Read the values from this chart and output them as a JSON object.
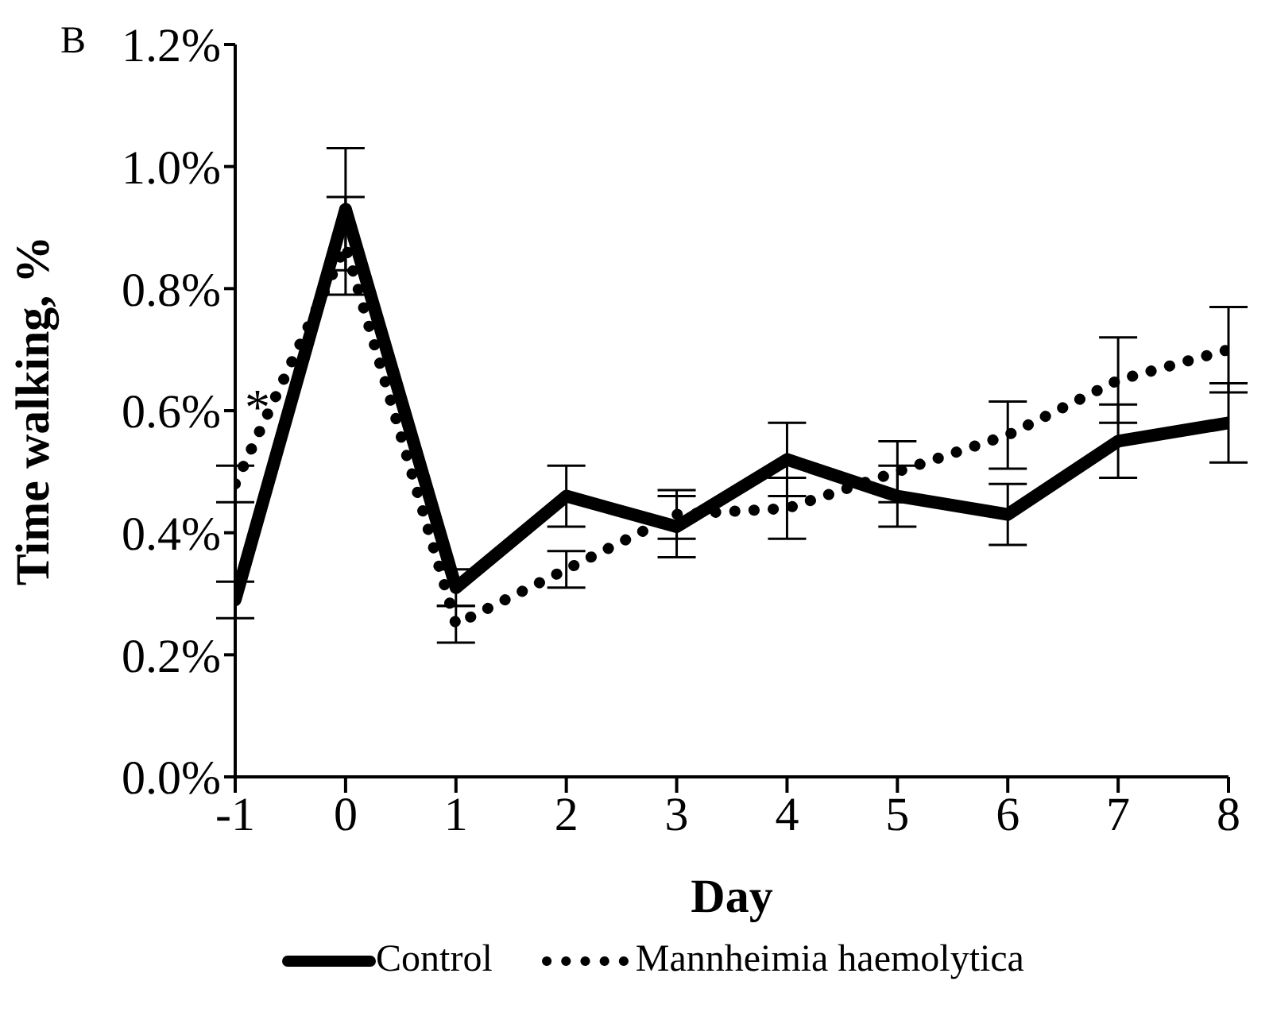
{
  "chart_data": {
    "type": "line",
    "xlabel": "Day",
    "ylabel": "Time walking, %",
    "x": [
      -1,
      0,
      1,
      2,
      3,
      4,
      5,
      6,
      7,
      8
    ],
    "series": [
      {
        "name": "Control",
        "color": "#000000",
        "line_style": "solid",
        "values": [
          0.29,
          0.93,
          0.31,
          0.46,
          0.41,
          0.52,
          0.46,
          0.43,
          0.55,
          0.58
        ],
        "errors": [
          0.03,
          0.1,
          0.03,
          0.05,
          0.05,
          0.06,
          0.05,
          0.05,
          0.06,
          0.065
        ]
      },
      {
        "name": "Mannheimia haemolytica",
        "color": "#000000",
        "line_style": "dotted",
        "values": [
          0.48,
          0.87,
          0.25,
          0.34,
          0.43,
          0.44,
          0.5,
          0.56,
          0.65,
          0.7
        ],
        "errors": [
          0.03,
          0.08,
          0.03,
          0.03,
          0.04,
          0.05,
          0.05,
          0.055,
          0.07,
          0.07
        ]
      }
    ],
    "xlim": [
      -1,
      8
    ],
    "xticks": [
      -1,
      0,
      1,
      2,
      3,
      4,
      5,
      6,
      7,
      8
    ],
    "ylim": [
      0,
      1.2
    ],
    "yticks": [
      {
        "value": 0,
        "label": "0.0%"
      },
      {
        "value": 0.2,
        "label": "0.2%"
      },
      {
        "value": 0.4,
        "label": "0.4%"
      },
      {
        "value": 0.6,
        "label": "0.6%"
      },
      {
        "value": 0.8,
        "label": "0.8%"
      },
      {
        "value": 1.0,
        "label": "1.0%"
      },
      {
        "value": 1.2,
        "label": "1.2%"
      }
    ],
    "annotations": [
      "B",
      "*"
    ],
    "legend": "bottom",
    "marker": "none",
    "grid": false
  }
}
